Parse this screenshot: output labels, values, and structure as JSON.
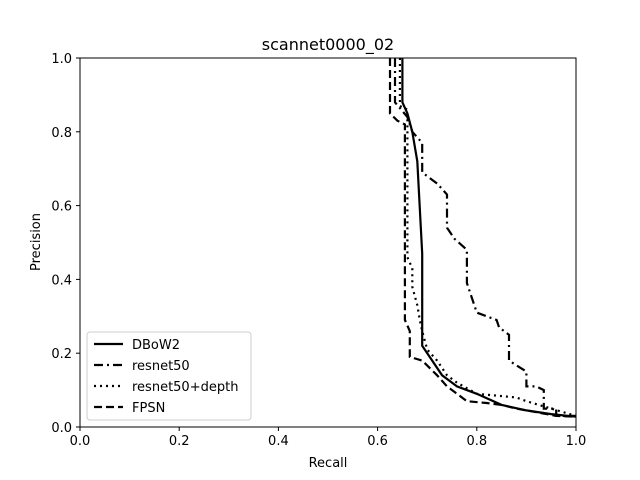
{
  "chart_data": {
    "type": "line",
    "title": "scannet0000_02",
    "xlabel": "Recall",
    "ylabel": "Precision",
    "xlim": [
      0.0,
      1.0
    ],
    "ylim": [
      0.0,
      1.0
    ],
    "xticks": [
      "0.0",
      "0.2",
      "0.4",
      "0.6",
      "0.8",
      "1.0"
    ],
    "yticks": [
      "0.0",
      "0.2",
      "0.4",
      "0.6",
      "0.8",
      "1.0"
    ],
    "grid": false,
    "legend_position": "lower-left",
    "series": [
      {
        "name": "DBoW2",
        "style": "solid",
        "color": "#000000",
        "points": [
          [
            0.65,
            1.0
          ],
          [
            0.65,
            0.88
          ],
          [
            0.66,
            0.85
          ],
          [
            0.67,
            0.8
          ],
          [
            0.68,
            0.72
          ],
          [
            0.69,
            0.47
          ],
          [
            0.69,
            0.22
          ],
          [
            0.71,
            0.18
          ],
          [
            0.73,
            0.14
          ],
          [
            0.76,
            0.11
          ],
          [
            0.8,
            0.09
          ],
          [
            0.85,
            0.06
          ],
          [
            0.9,
            0.045
          ],
          [
            0.95,
            0.035
          ],
          [
            1.0,
            0.028
          ]
        ]
      },
      {
        "name": "resnet50",
        "style": "dashdot",
        "color": "#000000",
        "points": [
          [
            0.635,
            1.0
          ],
          [
            0.635,
            0.88
          ],
          [
            0.66,
            0.84
          ],
          [
            0.67,
            0.8
          ],
          [
            0.69,
            0.77
          ],
          [
            0.69,
            0.69
          ],
          [
            0.72,
            0.66
          ],
          [
            0.74,
            0.63
          ],
          [
            0.74,
            0.54
          ],
          [
            0.755,
            0.51
          ],
          [
            0.78,
            0.48
          ],
          [
            0.78,
            0.39
          ],
          [
            0.8,
            0.31
          ],
          [
            0.84,
            0.29
          ],
          [
            0.845,
            0.27
          ],
          [
            0.865,
            0.25
          ],
          [
            0.865,
            0.18
          ],
          [
            0.9,
            0.15
          ],
          [
            0.9,
            0.11
          ],
          [
            0.92,
            0.11
          ],
          [
            0.935,
            0.1
          ],
          [
            0.935,
            0.05
          ],
          [
            0.96,
            0.05
          ],
          [
            0.96,
            0.03
          ],
          [
            1.0,
            0.03
          ]
        ]
      },
      {
        "name": "resnet50+depth",
        "style": "dotted",
        "color": "#000000",
        "points": [
          [
            0.645,
            1.0
          ],
          [
            0.645,
            0.87
          ],
          [
            0.66,
            0.86
          ],
          [
            0.66,
            0.46
          ],
          [
            0.67,
            0.43
          ],
          [
            0.67,
            0.38
          ],
          [
            0.68,
            0.33
          ],
          [
            0.685,
            0.29
          ],
          [
            0.69,
            0.26
          ],
          [
            0.7,
            0.21
          ],
          [
            0.72,
            0.18
          ],
          [
            0.74,
            0.14
          ],
          [
            0.76,
            0.12
          ],
          [
            0.8,
            0.09
          ],
          [
            0.88,
            0.08
          ],
          [
            0.9,
            0.07
          ],
          [
            0.95,
            0.05
          ],
          [
            1.0,
            0.03
          ]
        ]
      },
      {
        "name": "FPSN",
        "style": "dashed",
        "color": "#000000",
        "points": [
          [
            0.625,
            1.0
          ],
          [
            0.625,
            0.85
          ],
          [
            0.64,
            0.83
          ],
          [
            0.655,
            0.82
          ],
          [
            0.655,
            0.29
          ],
          [
            0.665,
            0.26
          ],
          [
            0.665,
            0.19
          ],
          [
            0.69,
            0.18
          ],
          [
            0.72,
            0.14
          ],
          [
            0.74,
            0.11
          ],
          [
            0.76,
            0.09
          ],
          [
            0.78,
            0.07
          ],
          [
            0.82,
            0.065
          ],
          [
            0.85,
            0.06
          ],
          [
            0.88,
            0.05
          ],
          [
            0.92,
            0.04
          ],
          [
            0.96,
            0.03
          ],
          [
            1.0,
            0.028
          ]
        ]
      }
    ]
  }
}
